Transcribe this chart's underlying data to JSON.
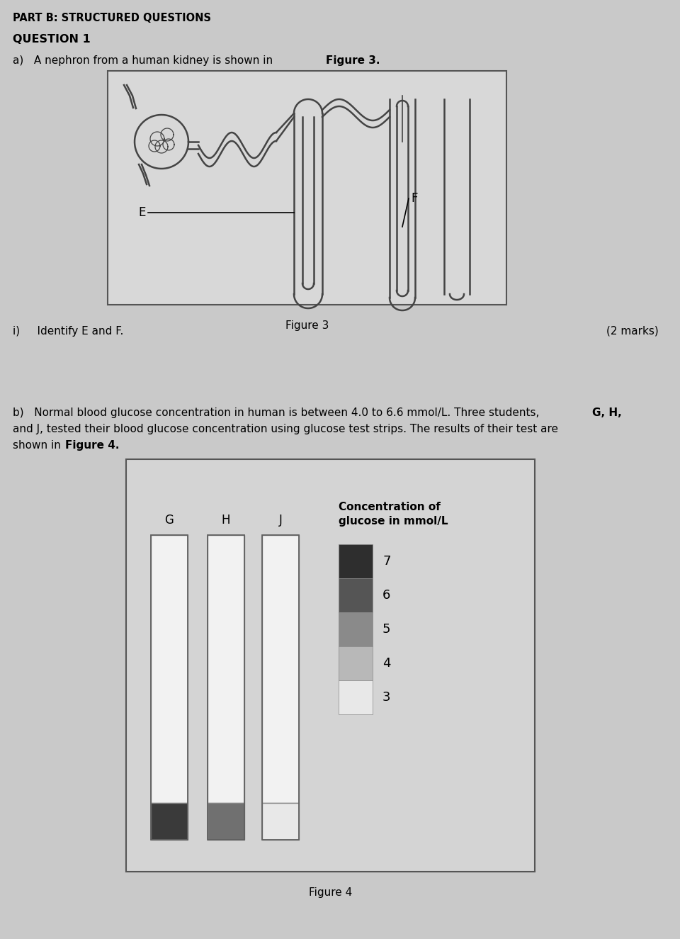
{
  "bg_color": "#c9c9c9",
  "fig3_box_bg": "#d8d8d8",
  "fig4_box_bg": "#d4d4d4",
  "title_part": "PART B: STRUCTURED QUESTIONS",
  "title_q": "QUESTION 1",
  "fig3_caption": "Figure 3",
  "fig4_caption": "Figure 4",
  "legend_title_line1": "Concentration of",
  "legend_title_line2": "glucose in mmol/L",
  "legend_values": [
    7,
    6,
    5,
    4,
    3
  ],
  "legend_colors": [
    "#2e2e2e",
    "#555555",
    "#8a8a8a",
    "#b8b8b8",
    "#e8e8e8"
  ],
  "strip_G_color": "#3a3a3a",
  "strip_H_color": "#707070",
  "strip_J_color": "#e8e8e8",
  "strip_labels": [
    "G",
    "H",
    "J"
  ],
  "line_color": "#444444",
  "lw": 1.8
}
